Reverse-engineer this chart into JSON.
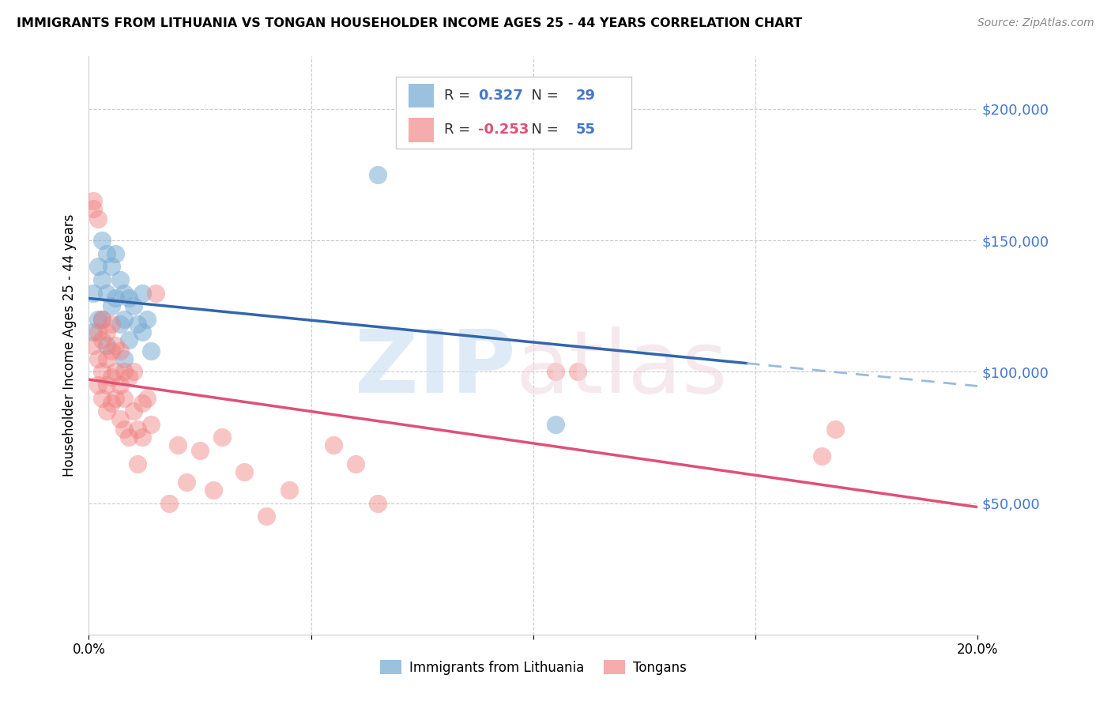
{
  "title": "IMMIGRANTS FROM LITHUANIA VS TONGAN HOUSEHOLDER INCOME AGES 25 - 44 YEARS CORRELATION CHART",
  "source": "Source: ZipAtlas.com",
  "ylabel": "Householder Income Ages 25 - 44 years",
  "xlim": [
    0.0,
    0.2
  ],
  "ylim": [
    0,
    220000
  ],
  "yticks": [
    0,
    50000,
    100000,
    150000,
    200000
  ],
  "ytick_labels": [
    "",
    "$50,000",
    "$100,000",
    "$150,000",
    "$200,000"
  ],
  "xticks": [
    0.0,
    0.05,
    0.1,
    0.15,
    0.2
  ],
  "xtick_labels": [
    "0.0%",
    "",
    "",
    "",
    "20.0%"
  ],
  "grid_color": "#cccccc",
  "background_color": "#ffffff",
  "blue_color": "#7aadd4",
  "pink_color": "#f08080",
  "blue_line_color": "#3366aa",
  "pink_line_color": "#e05075",
  "blue_dashed_color": "#99bbdd",
  "legend_r_blue": "0.327",
  "legend_n_blue": "29",
  "legend_r_pink": "-0.253",
  "legend_n_pink": "55",
  "blue_points_x": [
    0.001,
    0.001,
    0.002,
    0.002,
    0.003,
    0.003,
    0.003,
    0.004,
    0.004,
    0.004,
    0.005,
    0.005,
    0.006,
    0.006,
    0.007,
    0.007,
    0.008,
    0.008,
    0.008,
    0.009,
    0.009,
    0.01,
    0.011,
    0.012,
    0.012,
    0.013,
    0.014,
    0.065,
    0.105
  ],
  "blue_points_y": [
    130000,
    115000,
    140000,
    120000,
    150000,
    135000,
    120000,
    145000,
    130000,
    110000,
    140000,
    125000,
    145000,
    128000,
    135000,
    118000,
    130000,
    120000,
    105000,
    128000,
    112000,
    125000,
    118000,
    130000,
    115000,
    120000,
    108000,
    175000,
    80000
  ],
  "pink_points_x": [
    0.001,
    0.001,
    0.001,
    0.002,
    0.002,
    0.002,
    0.002,
    0.003,
    0.003,
    0.003,
    0.003,
    0.004,
    0.004,
    0.004,
    0.004,
    0.005,
    0.005,
    0.005,
    0.005,
    0.006,
    0.006,
    0.006,
    0.007,
    0.007,
    0.007,
    0.008,
    0.008,
    0.008,
    0.009,
    0.009,
    0.01,
    0.01,
    0.011,
    0.011,
    0.012,
    0.012,
    0.013,
    0.014,
    0.015,
    0.018,
    0.02,
    0.022,
    0.025,
    0.028,
    0.03,
    0.035,
    0.04,
    0.045,
    0.055,
    0.06,
    0.065,
    0.105,
    0.11,
    0.165,
    0.168
  ],
  "pink_points_y": [
    165000,
    162000,
    110000,
    158000,
    115000,
    105000,
    95000,
    120000,
    112000,
    100000,
    90000,
    115000,
    105000,
    95000,
    85000,
    118000,
    108000,
    98000,
    88000,
    110000,
    100000,
    90000,
    108000,
    95000,
    82000,
    100000,
    90000,
    78000,
    98000,
    75000,
    100000,
    85000,
    78000,
    65000,
    88000,
    75000,
    90000,
    80000,
    130000,
    50000,
    72000,
    58000,
    70000,
    55000,
    75000,
    62000,
    45000,
    55000,
    72000,
    65000,
    50000,
    100000,
    100000,
    68000,
    78000
  ]
}
